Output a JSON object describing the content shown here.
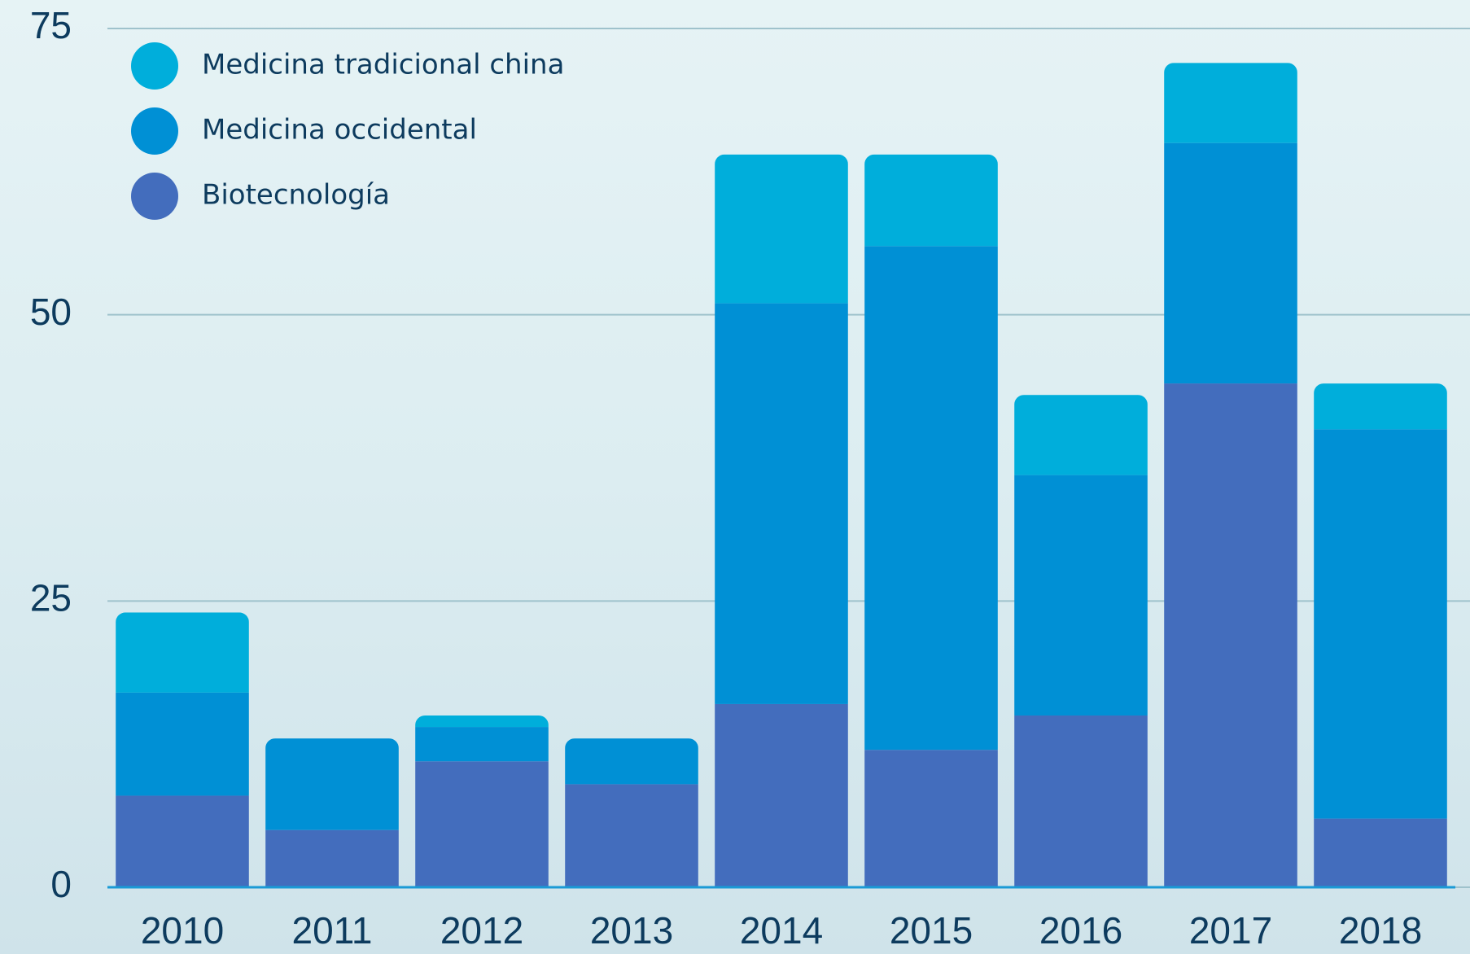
{
  "chart_data": {
    "type": "stacked_bar",
    "categories": [
      "2010",
      "2011",
      "2012",
      "2013",
      "2014",
      "2015",
      "2016",
      "2017",
      "2018"
    ],
    "series": [
      {
        "name": "Biotecnología",
        "color": "#436dbd",
        "values": [
          8,
          5,
          11,
          9,
          16,
          12,
          15,
          44,
          6
        ]
      },
      {
        "name": "Medicina occidental",
        "color": "#0090d5",
        "values": [
          9,
          8,
          3,
          4,
          35,
          44,
          21,
          21,
          34
        ]
      },
      {
        "name": "Medicina tradicional china",
        "color": "#00aedb",
        "values": [
          7,
          0,
          1,
          0,
          13,
          8,
          7,
          7,
          4
        ]
      }
    ],
    "ylim": [
      0,
      75
    ],
    "yticks": [
      0,
      25,
      50,
      75
    ],
    "grid": true
  }
}
